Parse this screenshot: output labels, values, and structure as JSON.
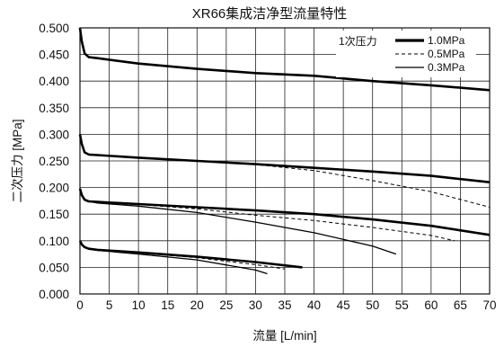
{
  "chart_data": {
    "type": "line",
    "title": "XR66集成洁净型流量特性",
    "xlabel": "流量 [L/min]",
    "ylabel": "二次压力 [MPa]",
    "xlim": [
      0,
      70
    ],
    "ylim": [
      0,
      0.5
    ],
    "x_ticks": [
      "0",
      "5",
      "10",
      "15",
      "20",
      "25",
      "30",
      "35",
      "40",
      "45",
      "50",
      "55",
      "60",
      "65",
      "70"
    ],
    "y_ticks": [
      "0.000",
      "0.050",
      "0.100",
      "0.150",
      "0.200",
      "0.250",
      "0.300",
      "0.350",
      "0.400",
      "0.450",
      "0.500"
    ],
    "grid": true,
    "legend": {
      "position": "top-right",
      "title": "1次压力",
      "entries": [
        {
          "label": "1.0MPa",
          "style": "bold-solid"
        },
        {
          "label": "0.5MPa",
          "style": "dashed"
        },
        {
          "label": "0.3MPa",
          "style": "thin-solid"
        }
      ]
    },
    "series": [
      {
        "name": "1.0MPa",
        "set": 0.4,
        "points": [
          [
            0,
            0.5
          ],
          [
            0.3,
            0.475
          ],
          [
            0.8,
            0.452
          ],
          [
            1.5,
            0.445
          ],
          [
            3,
            0.443
          ],
          [
            10,
            0.433
          ],
          [
            20,
            0.423
          ],
          [
            30,
            0.415
          ],
          [
            40,
            0.41
          ],
          [
            50,
            0.4
          ],
          [
            60,
            0.392
          ],
          [
            70,
            0.383
          ]
        ]
      },
      {
        "name": "1.0MPa",
        "set": 0.25,
        "points": [
          [
            0,
            0.3
          ],
          [
            0.3,
            0.282
          ],
          [
            0.8,
            0.266
          ],
          [
            1.5,
            0.262
          ],
          [
            3,
            0.261
          ],
          [
            10,
            0.256
          ],
          [
            20,
            0.25
          ],
          [
            30,
            0.244
          ],
          [
            40,
            0.237
          ],
          [
            50,
            0.23
          ],
          [
            60,
            0.222
          ],
          [
            70,
            0.21
          ]
        ]
      },
      {
        "name": "0.5MPa",
        "set": 0.25,
        "points": [
          [
            0,
            0.3
          ],
          [
            0.3,
            0.282
          ],
          [
            0.8,
            0.266
          ],
          [
            1.5,
            0.262
          ],
          [
            3,
            0.261
          ],
          [
            10,
            0.256
          ],
          [
            20,
            0.25
          ],
          [
            30,
            0.243
          ],
          [
            40,
            0.232
          ],
          [
            50,
            0.213
          ],
          [
            60,
            0.192
          ],
          [
            70,
            0.163
          ]
        ]
      },
      {
        "name": "1.0MPa",
        "set": 0.15,
        "points": [
          [
            0,
            0.198
          ],
          [
            0.3,
            0.186
          ],
          [
            0.8,
            0.177
          ],
          [
            1.5,
            0.174
          ],
          [
            3,
            0.173
          ],
          [
            10,
            0.169
          ],
          [
            20,
            0.163
          ],
          [
            30,
            0.157
          ],
          [
            40,
            0.15
          ],
          [
            50,
            0.14
          ],
          [
            60,
            0.128
          ],
          [
            70,
            0.111
          ]
        ]
      },
      {
        "name": "0.5MPa",
        "set": 0.15,
        "points": [
          [
            0,
            0.198
          ],
          [
            0.3,
            0.186
          ],
          [
            0.8,
            0.177
          ],
          [
            1.5,
            0.174
          ],
          [
            3,
            0.172
          ],
          [
            10,
            0.168
          ],
          [
            20,
            0.16
          ],
          [
            30,
            0.148
          ],
          [
            40,
            0.138
          ],
          [
            50,
            0.125
          ],
          [
            60,
            0.11
          ],
          [
            64,
            0.1
          ]
        ]
      },
      {
        "name": "0.3MPa",
        "set": 0.15,
        "points": [
          [
            0,
            0.198
          ],
          [
            0.3,
            0.186
          ],
          [
            0.8,
            0.177
          ],
          [
            1.5,
            0.174
          ],
          [
            3,
            0.171
          ],
          [
            10,
            0.165
          ],
          [
            20,
            0.153
          ],
          [
            30,
            0.135
          ],
          [
            40,
            0.115
          ],
          [
            50,
            0.09
          ],
          [
            54,
            0.075
          ]
        ]
      },
      {
        "name": "1.0MPa",
        "set": 0.075,
        "points": [
          [
            0,
            0.1
          ],
          [
            0.3,
            0.093
          ],
          [
            0.8,
            0.088
          ],
          [
            1.5,
            0.085
          ],
          [
            3,
            0.083
          ],
          [
            10,
            0.078
          ],
          [
            20,
            0.07
          ],
          [
            30,
            0.06
          ],
          [
            38,
            0.05
          ]
        ]
      },
      {
        "name": "0.5MPa",
        "set": 0.075,
        "points": [
          [
            0,
            0.1
          ],
          [
            0.3,
            0.093
          ],
          [
            0.8,
            0.088
          ],
          [
            1.5,
            0.085
          ],
          [
            3,
            0.083
          ],
          [
            10,
            0.077
          ],
          [
            20,
            0.068
          ],
          [
            30,
            0.055
          ],
          [
            35,
            0.047
          ]
        ]
      },
      {
        "name": "0.3MPa",
        "set": 0.075,
        "points": [
          [
            0,
            0.1
          ],
          [
            0.3,
            0.093
          ],
          [
            0.8,
            0.088
          ],
          [
            1.5,
            0.085
          ],
          [
            3,
            0.082
          ],
          [
            10,
            0.075
          ],
          [
            20,
            0.064
          ],
          [
            30,
            0.045
          ],
          [
            32,
            0.038
          ]
        ]
      }
    ]
  }
}
